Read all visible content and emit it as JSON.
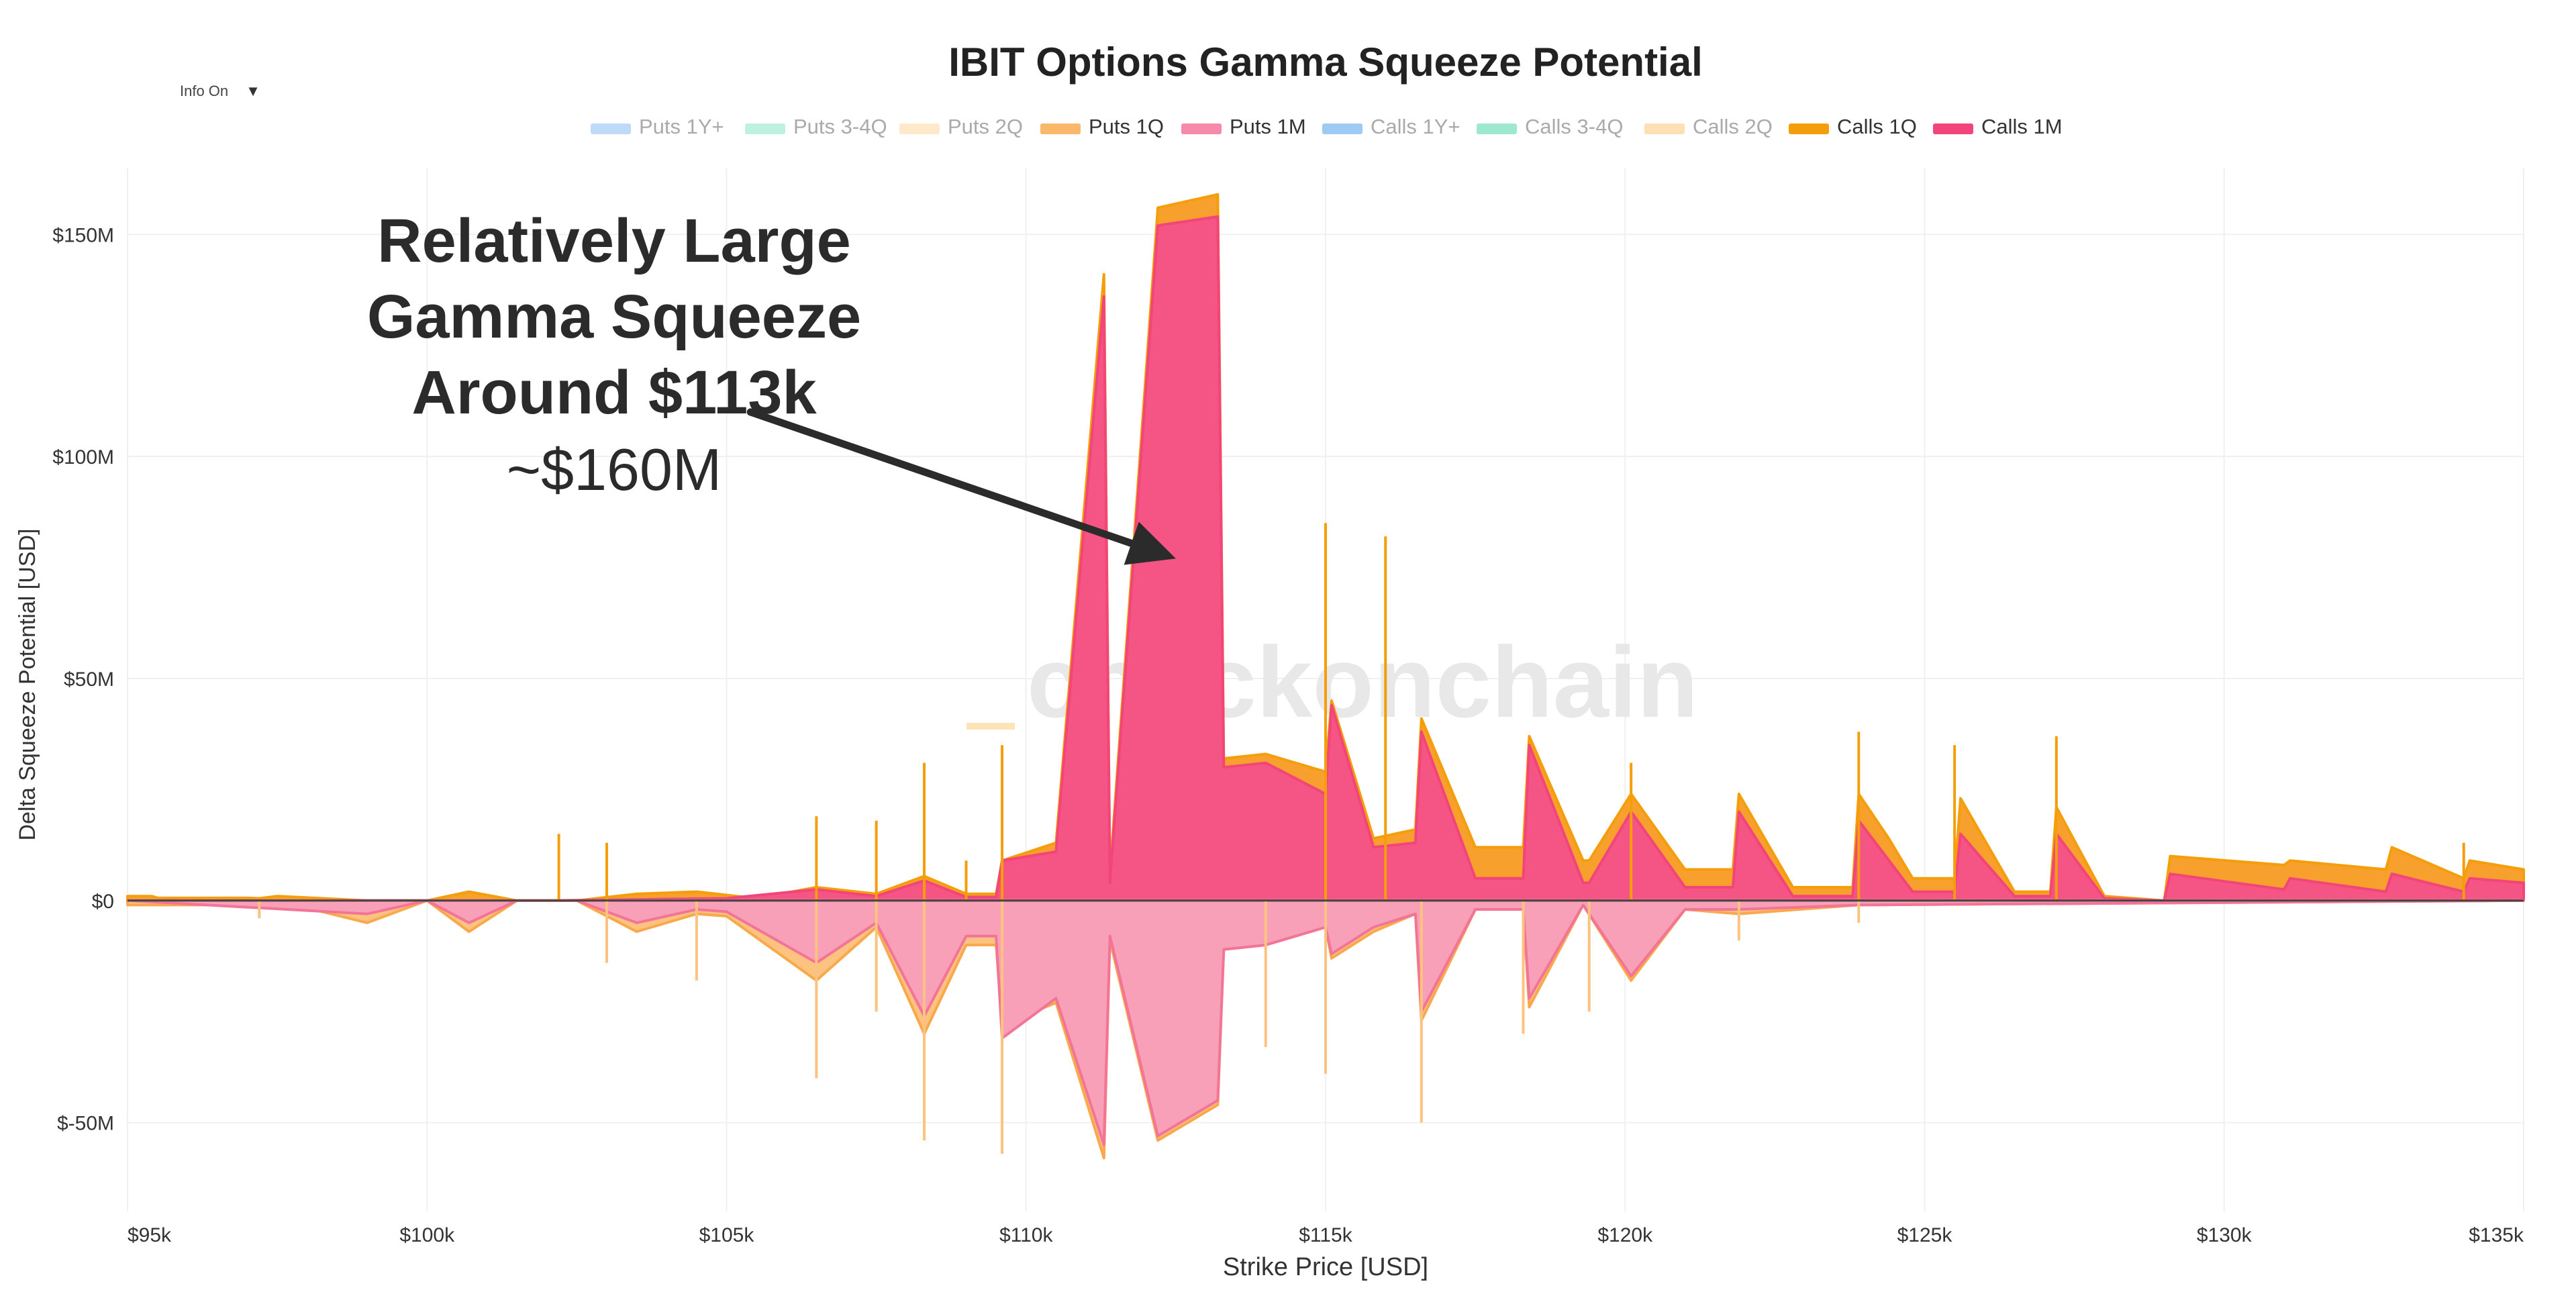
{
  "controls": {
    "info_toggle_label": "Info On",
    "info_toggle_icon": "caret-down-icon",
    "info_toggle_caret": "▼"
  },
  "annotation": {
    "lines": [
      "Relatively Large",
      "Gamma Squeeze",
      "Around $113k"
    ],
    "value": "~$160M",
    "arrow_from": {
      "x": 105400,
      "y": 110000000
    },
    "arrow_to": {
      "x": 112500,
      "y": 77000000
    }
  },
  "watermark": {
    "text": "checkonchain"
  },
  "chart_data": {
    "type": "area",
    "title": "IBIT Options Gamma Squeeze Potential",
    "xlabel": "Strike Price [USD]",
    "ylabel": "Delta Squeeze Potential [USD]",
    "xlim": [
      95000,
      135000
    ],
    "ylim": [
      -70000000,
      165000000
    ],
    "xticks": [
      {
        "v": 95000,
        "label": "$95k"
      },
      {
        "v": 100000,
        "label": "$100k"
      },
      {
        "v": 105000,
        "label": "$105k"
      },
      {
        "v": 110000,
        "label": "$110k"
      },
      {
        "v": 115000,
        "label": "$115k"
      },
      {
        "v": 120000,
        "label": "$120k"
      },
      {
        "v": 125000,
        "label": "$125k"
      },
      {
        "v": 130000,
        "label": "$130k"
      },
      {
        "v": 135000,
        "label": "$135k"
      }
    ],
    "yticks": [
      {
        "v": -50000000,
        "label": "$-50M"
      },
      {
        "v": 0,
        "label": "$0"
      },
      {
        "v": 50000000,
        "label": "$50M"
      },
      {
        "v": 100000000,
        "label": "$100M"
      },
      {
        "v": 150000000,
        "label": "$150M"
      }
    ],
    "legend": [
      {
        "name": "Puts 1Y+",
        "color": "#a9cdf5",
        "active": false
      },
      {
        "name": "Puts 3-4Q",
        "color": "#a8ecd4",
        "active": false
      },
      {
        "name": "Puts 2Q",
        "color": "#fde3b8",
        "active": false
      },
      {
        "name": "Puts 1Q",
        "color": "#f9b86a",
        "active": true
      },
      {
        "name": "Puts 1M",
        "color": "#f68aaa",
        "active": true
      },
      {
        "name": "Calls 1Y+",
        "color": "#7fb8f0",
        "active": false
      },
      {
        "name": "Calls 3-4Q",
        "color": "#7ee0bf",
        "active": false
      },
      {
        "name": "Calls 2Q",
        "color": "#fcd699",
        "active": false
      },
      {
        "name": "Calls 1Q",
        "color": "#f59e0b",
        "active": true
      },
      {
        "name": "Calls 1M",
        "color": "#f2457a",
        "active": true
      }
    ],
    "series": [
      {
        "name": "Calls 1Q",
        "color": "#f59e0b",
        "fill": "#f7a02d",
        "points": [
          [
            95000,
            1000000
          ],
          [
            95400,
            1000000
          ],
          [
            95500,
            600000
          ],
          [
            97000,
            600000
          ],
          [
            97200,
            500000
          ],
          [
            97500,
            1000000
          ],
          [
            99000,
            0
          ],
          [
            100000,
            0
          ],
          [
            100700,
            2000000
          ],
          [
            101500,
            0
          ],
          [
            102500,
            0
          ],
          [
            103500,
            1500000
          ],
          [
            104500,
            2000000
          ],
          [
            105500,
            500000
          ],
          [
            106500,
            3000000
          ],
          [
            107500,
            1500000
          ],
          [
            108300,
            5500000
          ],
          [
            109000,
            1500000
          ],
          [
            109500,
            1500000
          ],
          [
            109600,
            9000000
          ],
          [
            110500,
            13000000
          ],
          [
            111300,
            141000000
          ],
          [
            111400,
            6000000
          ],
          [
            112200,
            156000000
          ],
          [
            113200,
            159000000
          ],
          [
            113300,
            32000000
          ],
          [
            114000,
            33000000
          ],
          [
            115000,
            29000000
          ],
          [
            115100,
            45000000
          ],
          [
            115800,
            14000000
          ],
          [
            116500,
            16000000
          ],
          [
            116600,
            41000000
          ],
          [
            117500,
            12000000
          ],
          [
            118300,
            12000000
          ],
          [
            118400,
            37000000
          ],
          [
            119300,
            9000000
          ],
          [
            119400,
            9000000
          ],
          [
            120100,
            24000000
          ],
          [
            121000,
            7000000
          ],
          [
            121800,
            7000000
          ],
          [
            121900,
            24000000
          ],
          [
            122800,
            3000000
          ],
          [
            123800,
            3000000
          ],
          [
            123900,
            24000000
          ],
          [
            124400,
            14000000
          ],
          [
            124800,
            5000000
          ],
          [
            125500,
            5000000
          ],
          [
            125600,
            23000000
          ],
          [
            126500,
            2000000
          ],
          [
            127100,
            2000000
          ],
          [
            127200,
            21000000
          ],
          [
            128000,
            1000000
          ],
          [
            129000,
            0
          ],
          [
            129100,
            10000000
          ],
          [
            131000,
            8000000
          ],
          [
            131100,
            9000000
          ],
          [
            132700,
            7000000
          ],
          [
            132800,
            12000000
          ],
          [
            134000,
            5000000
          ],
          [
            134100,
            9000000
          ],
          [
            135000,
            7000000
          ]
        ]
      },
      {
        "name": "Calls 1M",
        "color": "#f2457a",
        "fill": "#f55585",
        "points": [
          [
            95000,
            0
          ],
          [
            100000,
            0
          ],
          [
            102000,
            0
          ],
          [
            105000,
            500000
          ],
          [
            106500,
            2500000
          ],
          [
            107500,
            1000000
          ],
          [
            108300,
            4500000
          ],
          [
            109000,
            800000
          ],
          [
            109500,
            800000
          ],
          [
            109600,
            9000000
          ],
          [
            110500,
            11000000
          ],
          [
            111300,
            136000000
          ],
          [
            111400,
            4000000
          ],
          [
            112200,
            152000000
          ],
          [
            113200,
            154000000
          ],
          [
            113300,
            30000000
          ],
          [
            114000,
            31000000
          ],
          [
            115000,
            24000000
          ],
          [
            115100,
            44000000
          ],
          [
            115800,
            12000000
          ],
          [
            116500,
            13000000
          ],
          [
            116600,
            38000000
          ],
          [
            117500,
            5000000
          ],
          [
            118300,
            5000000
          ],
          [
            118400,
            35000000
          ],
          [
            119300,
            4000000
          ],
          [
            119400,
            4000000
          ],
          [
            120100,
            20000000
          ],
          [
            121000,
            3000000
          ],
          [
            121800,
            3000000
          ],
          [
            121900,
            20000000
          ],
          [
            122800,
            1000000
          ],
          [
            123800,
            1000000
          ],
          [
            123900,
            18000000
          ],
          [
            124800,
            2000000
          ],
          [
            125500,
            2000000
          ],
          [
            125600,
            15000000
          ],
          [
            126500,
            1000000
          ],
          [
            127100,
            1000000
          ],
          [
            127200,
            15000000
          ],
          [
            128000,
            500000
          ],
          [
            129000,
            0
          ],
          [
            129100,
            6000000
          ],
          [
            131000,
            2500000
          ],
          [
            131100,
            5000000
          ],
          [
            132700,
            2000000
          ],
          [
            132800,
            6000000
          ],
          [
            134000,
            2000000
          ],
          [
            134100,
            5000000
          ],
          [
            135000,
            4000000
          ]
        ]
      },
      {
        "name": "Puts 1Q",
        "color": "#f9a94b",
        "fill": "#fbc37f",
        "points": [
          [
            95000,
            -1000000
          ],
          [
            95500,
            -1000000
          ],
          [
            97000,
            -1000000
          ],
          [
            97300,
            -1000000
          ],
          [
            97500,
            0
          ],
          [
            99000,
            -5000000
          ],
          [
            100000,
            0
          ],
          [
            100700,
            -7000000
          ],
          [
            101500,
            0
          ],
          [
            102500,
            0
          ],
          [
            103500,
            -7000000
          ],
          [
            104500,
            -3000000
          ],
          [
            105000,
            -3500000
          ],
          [
            106500,
            -18000000
          ],
          [
            107500,
            -6000000
          ],
          [
            108300,
            -30000000
          ],
          [
            109000,
            -10000000
          ],
          [
            109500,
            -10000000
          ],
          [
            109600,
            -28000000
          ],
          [
            110500,
            -23000000
          ],
          [
            111300,
            -58000000
          ],
          [
            111400,
            -9000000
          ],
          [
            112200,
            -54000000
          ],
          [
            113200,
            -46000000
          ],
          [
            113300,
            -11000000
          ],
          [
            114000,
            -10000000
          ],
          [
            115000,
            -6000000
          ],
          [
            115100,
            -13000000
          ],
          [
            115800,
            -7000000
          ],
          [
            116500,
            -3000000
          ],
          [
            116600,
            -27000000
          ],
          [
            117500,
            -2000000
          ],
          [
            118300,
            -2000000
          ],
          [
            118400,
            -24000000
          ],
          [
            119300,
            -1000000
          ],
          [
            120100,
            -18000000
          ],
          [
            121000,
            -2000000
          ],
          [
            121900,
            -3000000
          ],
          [
            123900,
            -1000000
          ],
          [
            135000,
            0
          ]
        ]
      },
      {
        "name": "Puts 1M",
        "color": "#f27497",
        "fill": "#f8a0b8",
        "points": [
          [
            95000,
            0
          ],
          [
            99000,
            -3000000
          ],
          [
            100000,
            0
          ],
          [
            100700,
            -5000000
          ],
          [
            101500,
            0
          ],
          [
            102500,
            0
          ],
          [
            103500,
            -5000000
          ],
          [
            104500,
            -2000000
          ],
          [
            105000,
            -2500000
          ],
          [
            106500,
            -14000000
          ],
          [
            107500,
            -5000000
          ],
          [
            108300,
            -26000000
          ],
          [
            109000,
            -8000000
          ],
          [
            109500,
            -8000000
          ],
          [
            109600,
            -31000000
          ],
          [
            110500,
            -22000000
          ],
          [
            111300,
            -55000000
          ],
          [
            111400,
            -8000000
          ],
          [
            112200,
            -53000000
          ],
          [
            113200,
            -45000000
          ],
          [
            113300,
            -11000000
          ],
          [
            114000,
            -10000000
          ],
          [
            115000,
            -6000000
          ],
          [
            115100,
            -12000000
          ],
          [
            115800,
            -6000000
          ],
          [
            116500,
            -3000000
          ],
          [
            116600,
            -25000000
          ],
          [
            117500,
            -2000000
          ],
          [
            118300,
            -2000000
          ],
          [
            118400,
            -22000000
          ],
          [
            119300,
            -1000000
          ],
          [
            120100,
            -17000000
          ],
          [
            121000,
            -2000000
          ],
          [
            121900,
            -2000000
          ],
          [
            123900,
            -1000000
          ],
          [
            135000,
            0
          ]
        ]
      }
    ],
    "spikes": [
      [
        97200,
        -4000000
      ],
      [
        102200,
        15000000
      ],
      [
        103000,
        13000000
      ],
      [
        103000,
        -14000000
      ],
      [
        104500,
        -18000000
      ],
      [
        106500,
        19000000
      ],
      [
        106500,
        -40000000
      ],
      [
        107500,
        18000000
      ],
      [
        107500,
        -25000000
      ],
      [
        108300,
        31000000
      ],
      [
        108300,
        -54000000
      ],
      [
        109000,
        9000000
      ],
      [
        109600,
        35000000
      ],
      [
        109600,
        -57000000
      ],
      [
        114000,
        -33000000
      ],
      [
        115000,
        85000000
      ],
      [
        115000,
        -39000000
      ],
      [
        116000,
        82000000
      ],
      [
        116600,
        -50000000
      ],
      [
        118300,
        -30000000
      ],
      [
        119400,
        -25000000
      ],
      [
        120100,
        31000000
      ],
      [
        121900,
        -9000000
      ],
      [
        123900,
        38000000
      ],
      [
        123900,
        -5000000
      ],
      [
        125500,
        35000000
      ],
      [
        127200,
        37000000
      ],
      [
        134000,
        13000000
      ]
    ]
  }
}
